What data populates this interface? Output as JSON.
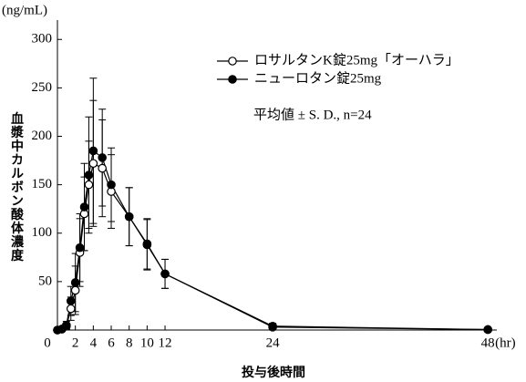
{
  "chart_data": {
    "type": "line",
    "y_unit_label": "(ng/mL)",
    "x_unit_label": "(hr)",
    "ylabel": "血漿中カルボン酸体濃度",
    "xlabel": "投与後時間",
    "annotation": "平均値 ± S. D., n=24",
    "x": [
      0,
      0.5,
      1,
      1.5,
      2,
      2.5,
      3,
      3.5,
      4,
      5,
      6,
      8,
      10,
      12,
      24,
      48
    ],
    "series": [
      {
        "name": "ロサルタンK錠25mg「オーハラ」",
        "color": "#000000",
        "marker": "open",
        "values": [
          0,
          1,
          4,
          22,
          41,
          80,
          120,
          150,
          172,
          167,
          143,
          117,
          89,
          58,
          3,
          0.5
        ],
        "errors": [
          0,
          1,
          3,
          12,
          25,
          35,
          38,
          45,
          65,
          50,
          38,
          30,
          26,
          15,
          3,
          0.5
        ]
      },
      {
        "name": "ニューロタン錠25mg",
        "color": "#000000",
        "marker": "filled",
        "values": [
          0,
          1,
          5,
          30,
          49,
          85,
          127,
          160,
          185,
          178,
          150,
          117,
          88,
          58,
          4,
          0.5
        ],
        "errors": [
          0,
          1,
          4,
          15,
          30,
          35,
          45,
          60,
          75,
          50,
          38,
          30,
          26,
          15,
          3,
          0.5
        ]
      }
    ],
    "xlim": [
      0,
      49
    ],
    "xticks": [
      0,
      2,
      4,
      6,
      8,
      10,
      12,
      24,
      48
    ],
    "ylim": [
      0,
      320
    ],
    "yticks": [
      50,
      100,
      150,
      200,
      250,
      300
    ]
  }
}
